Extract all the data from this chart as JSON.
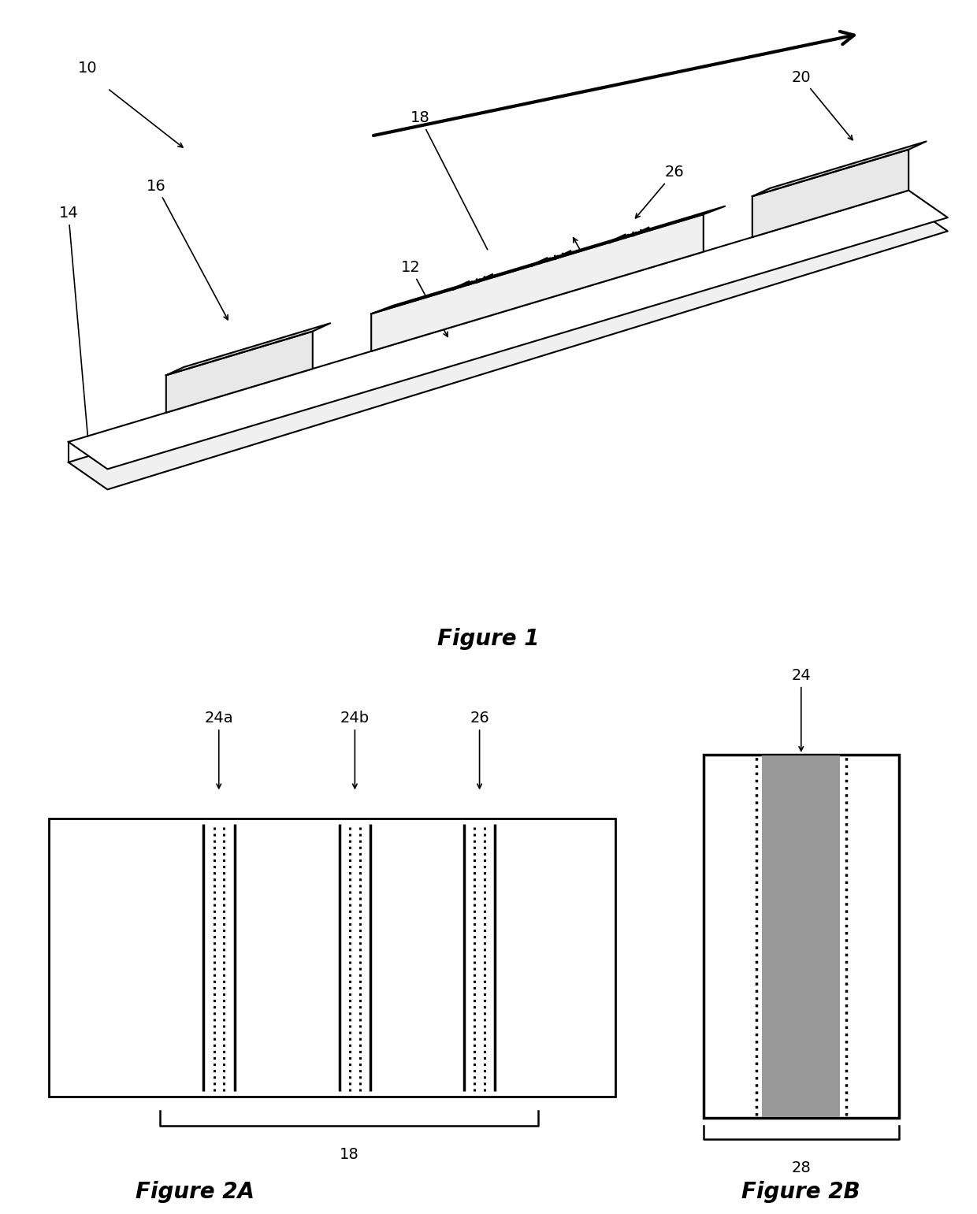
{
  "bg_color": "#ffffff",
  "fig_width": 12.4,
  "fig_height": 15.41,
  "fig1_label": "Figure 1",
  "fig2a_label": "Figure 2A",
  "fig2b_label": "Figure 2B",
  "line_color": "#000000",
  "gray_color": "#aaaaaa",
  "dark_gray": "#555555",
  "light_gray": "#e8e8e8",
  "very_light_gray": "#f0f0f0"
}
